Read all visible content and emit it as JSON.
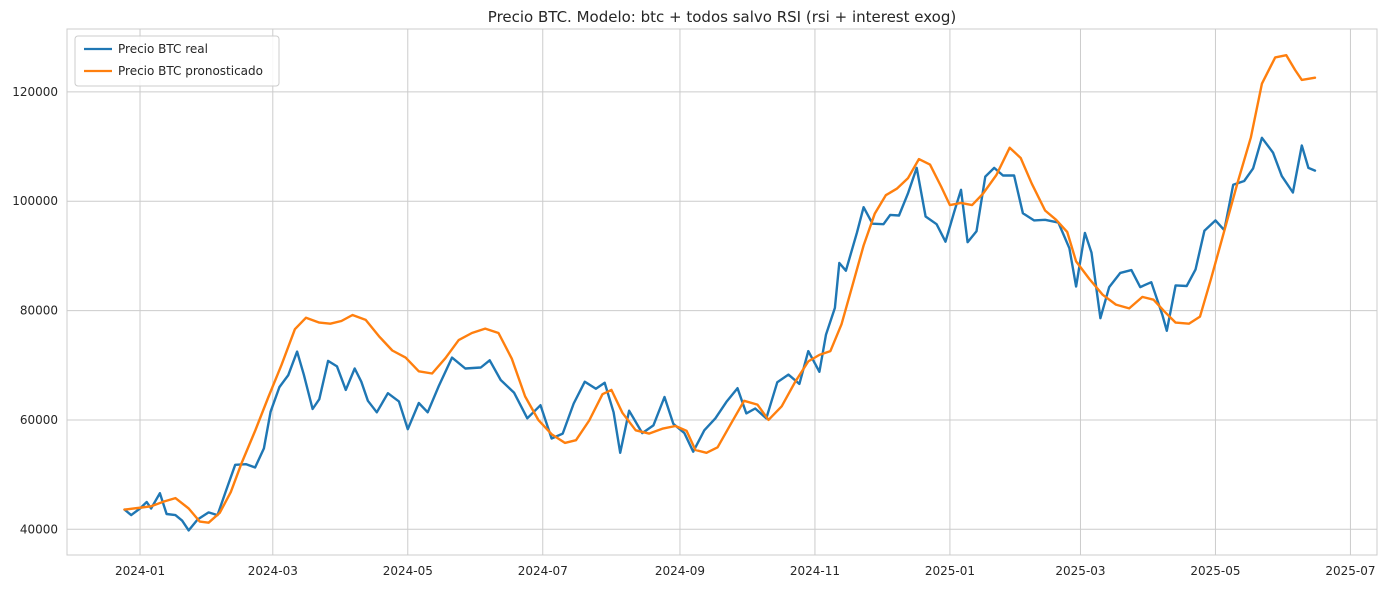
{
  "chart_data": {
    "type": "line",
    "title": "Precio BTC. Modelo: btc + todos salvo RSI (rsi + interest exog)",
    "xlabel": "",
    "ylabel": "",
    "x_ticks": [
      "2024-01",
      "2024-03",
      "2024-05",
      "2024-07",
      "2024-09",
      "2024-11",
      "2025-01",
      "2025-03",
      "2025-05",
      "2025-07"
    ],
    "y_ticks": [
      40000,
      60000,
      80000,
      100000,
      120000
    ],
    "xlim": [
      "2023-11-29",
      "2025-07-13"
    ],
    "ylim": [
      35300,
      131500
    ],
    "grid": true,
    "legend_position": "top-left",
    "series": [
      {
        "name": "Precio BTC real",
        "color": "#1f77b4",
        "points": [
          [
            "2023-12-25",
            43600
          ],
          [
            "2023-12-28",
            42600
          ],
          [
            "2024-01-01",
            43800
          ],
          [
            "2024-01-04",
            45000
          ],
          [
            "2024-01-06",
            43800
          ],
          [
            "2024-01-10",
            46600
          ],
          [
            "2024-01-13",
            42800
          ],
          [
            "2024-01-17",
            42600
          ],
          [
            "2024-01-20",
            41600
          ],
          [
            "2024-01-23",
            39800
          ],
          [
            "2024-01-27",
            41800
          ],
          [
            "2024-02-01",
            43100
          ],
          [
            "2024-02-05",
            42600
          ],
          [
            "2024-02-09",
            47200
          ],
          [
            "2024-02-13",
            51800
          ],
          [
            "2024-02-18",
            51900
          ],
          [
            "2024-02-22",
            51300
          ],
          [
            "2024-02-26",
            54800
          ],
          [
            "2024-02-29",
            61500
          ],
          [
            "2024-03-04",
            66000
          ],
          [
            "2024-03-08",
            68200
          ],
          [
            "2024-03-12",
            72500
          ],
          [
            "2024-03-15",
            68300
          ],
          [
            "2024-03-19",
            62000
          ],
          [
            "2024-03-22",
            63800
          ],
          [
            "2024-03-26",
            70800
          ],
          [
            "2024-03-30",
            69800
          ],
          [
            "2024-04-03",
            65500
          ],
          [
            "2024-04-07",
            69400
          ],
          [
            "2024-04-10",
            67000
          ],
          [
            "2024-04-13",
            63500
          ],
          [
            "2024-04-17",
            61400
          ],
          [
            "2024-04-22",
            64900
          ],
          [
            "2024-04-27",
            63400
          ],
          [
            "2024-05-01",
            58300
          ],
          [
            "2024-05-06",
            63100
          ],
          [
            "2024-05-10",
            61400
          ],
          [
            "2024-05-15",
            66200
          ],
          [
            "2024-05-21",
            71400
          ],
          [
            "2024-05-27",
            69400
          ],
          [
            "2024-06-03",
            69600
          ],
          [
            "2024-06-07",
            70900
          ],
          [
            "2024-06-12",
            67300
          ],
          [
            "2024-06-18",
            65000
          ],
          [
            "2024-06-24",
            60300
          ],
          [
            "2024-06-30",
            62700
          ],
          [
            "2024-07-05",
            56600
          ],
          [
            "2024-07-10",
            57500
          ],
          [
            "2024-07-15",
            63000
          ],
          [
            "2024-07-20",
            67000
          ],
          [
            "2024-07-25",
            65700
          ],
          [
            "2024-07-29",
            66800
          ],
          [
            "2024-08-02",
            61400
          ],
          [
            "2024-08-05",
            54000
          ],
          [
            "2024-08-09",
            61700
          ],
          [
            "2024-08-15",
            57600
          ],
          [
            "2024-08-20",
            59000
          ],
          [
            "2024-08-25",
            64200
          ],
          [
            "2024-08-29",
            59300
          ],
          [
            "2024-09-03",
            57600
          ],
          [
            "2024-09-07",
            54200
          ],
          [
            "2024-09-12",
            58100
          ],
          [
            "2024-09-17",
            60300
          ],
          [
            "2024-09-22",
            63300
          ],
          [
            "2024-09-27",
            65800
          ],
          [
            "2024-10-01",
            61200
          ],
          [
            "2024-10-05",
            62100
          ],
          [
            "2024-10-10",
            60300
          ],
          [
            "2024-10-15",
            66900
          ],
          [
            "2024-10-20",
            68300
          ],
          [
            "2024-10-25",
            66600
          ],
          [
            "2024-10-29",
            72600
          ],
          [
            "2024-11-03",
            68800
          ],
          [
            "2024-11-06",
            75600
          ],
          [
            "2024-11-10",
            80500
          ],
          [
            "2024-11-12",
            88700
          ],
          [
            "2024-11-15",
            87300
          ],
          [
            "2024-11-20",
            94300
          ],
          [
            "2024-11-23",
            98900
          ],
          [
            "2024-11-27",
            95900
          ],
          [
            "2024-12-02",
            95800
          ],
          [
            "2024-12-05",
            97500
          ],
          [
            "2024-12-09",
            97400
          ],
          [
            "2024-12-13",
            101400
          ],
          [
            "2024-12-17",
            106100
          ],
          [
            "2024-12-21",
            97200
          ],
          [
            "2024-12-26",
            95800
          ],
          [
            "2024-12-30",
            92600
          ],
          [
            "2025-01-03",
            98100
          ],
          [
            "2025-01-06",
            102100
          ],
          [
            "2025-01-09",
            92500
          ],
          [
            "2025-01-13",
            94500
          ],
          [
            "2025-01-17",
            104500
          ],
          [
            "2025-01-21",
            106100
          ],
          [
            "2025-01-25",
            104700
          ],
          [
            "2025-01-30",
            104700
          ],
          [
            "2025-02-03",
            97800
          ],
          [
            "2025-02-08",
            96500
          ],
          [
            "2025-02-13",
            96600
          ],
          [
            "2025-02-19",
            96100
          ],
          [
            "2025-02-24",
            91400
          ],
          [
            "2025-02-27",
            84400
          ],
          [
            "2025-03-03",
            94200
          ],
          [
            "2025-03-06",
            90600
          ],
          [
            "2025-03-10",
            78600
          ],
          [
            "2025-03-14",
            84300
          ],
          [
            "2025-03-19",
            86900
          ],
          [
            "2025-03-24",
            87400
          ],
          [
            "2025-03-28",
            84300
          ],
          [
            "2025-04-02",
            85200
          ],
          [
            "2025-04-07",
            79200
          ],
          [
            "2025-04-09",
            76300
          ],
          [
            "2025-04-13",
            84600
          ],
          [
            "2025-04-18",
            84500
          ],
          [
            "2025-04-22",
            87500
          ],
          [
            "2025-04-26",
            94600
          ],
          [
            "2025-05-01",
            96500
          ],
          [
            "2025-05-05",
            94700
          ],
          [
            "2025-05-09",
            103000
          ],
          [
            "2025-05-14",
            103700
          ],
          [
            "2025-05-18",
            106000
          ],
          [
            "2025-05-22",
            111600
          ],
          [
            "2025-05-27",
            108900
          ],
          [
            "2025-05-31",
            104600
          ],
          [
            "2025-06-05",
            101600
          ],
          [
            "2025-06-09",
            110200
          ],
          [
            "2025-06-12",
            106100
          ],
          [
            "2025-06-15",
            105600
          ]
        ]
      },
      {
        "name": "Precio BTC pronosticado",
        "color": "#ff7f0e",
        "points": [
          [
            "2023-12-25",
            43600
          ],
          [
            "2023-12-31",
            43900
          ],
          [
            "2024-01-06",
            44200
          ],
          [
            "2024-01-12",
            45100
          ],
          [
            "2024-01-17",
            45700
          ],
          [
            "2024-01-23",
            43800
          ],
          [
            "2024-01-28",
            41400
          ],
          [
            "2024-02-01",
            41200
          ],
          [
            "2024-02-06",
            43000
          ],
          [
            "2024-02-11",
            46800
          ],
          [
            "2024-02-16",
            52200
          ],
          [
            "2024-02-22",
            58000
          ],
          [
            "2024-02-28",
            64200
          ],
          [
            "2024-03-05",
            70100
          ],
          [
            "2024-03-11",
            76600
          ],
          [
            "2024-03-16",
            78700
          ],
          [
            "2024-03-22",
            77800
          ],
          [
            "2024-03-27",
            77600
          ],
          [
            "2024-04-01",
            78100
          ],
          [
            "2024-04-06",
            79200
          ],
          [
            "2024-04-12",
            78300
          ],
          [
            "2024-04-18",
            75300
          ],
          [
            "2024-04-24",
            72700
          ],
          [
            "2024-04-30",
            71400
          ],
          [
            "2024-05-06",
            68900
          ],
          [
            "2024-05-12",
            68500
          ],
          [
            "2024-05-18",
            71300
          ],
          [
            "2024-05-24",
            74600
          ],
          [
            "2024-05-30",
            75900
          ],
          [
            "2024-06-05",
            76700
          ],
          [
            "2024-06-11",
            75900
          ],
          [
            "2024-06-17",
            71200
          ],
          [
            "2024-06-23",
            64300
          ],
          [
            "2024-06-29",
            60000
          ],
          [
            "2024-07-05",
            57400
          ],
          [
            "2024-07-11",
            55800
          ],
          [
            "2024-07-16",
            56300
          ],
          [
            "2024-07-22",
            59900
          ],
          [
            "2024-07-28",
            64700
          ],
          [
            "2024-08-01",
            65500
          ],
          [
            "2024-08-06",
            61300
          ],
          [
            "2024-08-12",
            58100
          ],
          [
            "2024-08-18",
            57500
          ],
          [
            "2024-08-24",
            58400
          ],
          [
            "2024-08-30",
            58900
          ],
          [
            "2024-09-04",
            58000
          ],
          [
            "2024-09-08",
            54500
          ],
          [
            "2024-09-13",
            54000
          ],
          [
            "2024-09-18",
            55000
          ],
          [
            "2024-09-24",
            59300
          ],
          [
            "2024-09-30",
            63500
          ],
          [
            "2024-10-06",
            62800
          ],
          [
            "2024-10-11",
            60000
          ],
          [
            "2024-10-17",
            62500
          ],
          [
            "2024-10-23",
            66900
          ],
          [
            "2024-10-29",
            70700
          ],
          [
            "2024-11-03",
            71900
          ],
          [
            "2024-11-08",
            72600
          ],
          [
            "2024-11-13",
            77500
          ],
          [
            "2024-11-18",
            84700
          ],
          [
            "2024-11-23",
            91900
          ],
          [
            "2024-11-28",
            97700
          ],
          [
            "2024-12-03",
            101100
          ],
          [
            "2024-12-08",
            102300
          ],
          [
            "2024-12-13",
            104200
          ],
          [
            "2024-12-18",
            107700
          ],
          [
            "2024-12-23",
            106700
          ],
          [
            "2024-12-28",
            102700
          ],
          [
            "2025-01-01",
            99300
          ],
          [
            "2025-01-06",
            99700
          ],
          [
            "2025-01-11",
            99300
          ],
          [
            "2025-01-16",
            101400
          ],
          [
            "2025-01-22",
            104800
          ],
          [
            "2025-01-28",
            109800
          ],
          [
            "2025-02-02",
            107900
          ],
          [
            "2025-02-07",
            103200
          ],
          [
            "2025-02-13",
            98300
          ],
          [
            "2025-02-18",
            96600
          ],
          [
            "2025-02-23",
            94400
          ],
          [
            "2025-02-27",
            89000
          ],
          [
            "2025-03-05",
            85800
          ],
          [
            "2025-03-11",
            82900
          ],
          [
            "2025-03-17",
            81100
          ],
          [
            "2025-03-23",
            80400
          ],
          [
            "2025-03-29",
            82500
          ],
          [
            "2025-04-03",
            82000
          ],
          [
            "2025-04-08",
            79800
          ],
          [
            "2025-04-13",
            77800
          ],
          [
            "2025-04-19",
            77600
          ],
          [
            "2025-04-24",
            78900
          ],
          [
            "2025-04-29",
            85800
          ],
          [
            "2025-05-05",
            94600
          ],
          [
            "2025-05-11",
            103400
          ],
          [
            "2025-05-17",
            111700
          ],
          [
            "2025-05-22",
            121500
          ],
          [
            "2025-05-28",
            126300
          ],
          [
            "2025-06-02",
            126700
          ],
          [
            "2025-06-06",
            124000
          ],
          [
            "2025-06-09",
            122200
          ],
          [
            "2025-06-15",
            122600
          ]
        ]
      }
    ]
  }
}
